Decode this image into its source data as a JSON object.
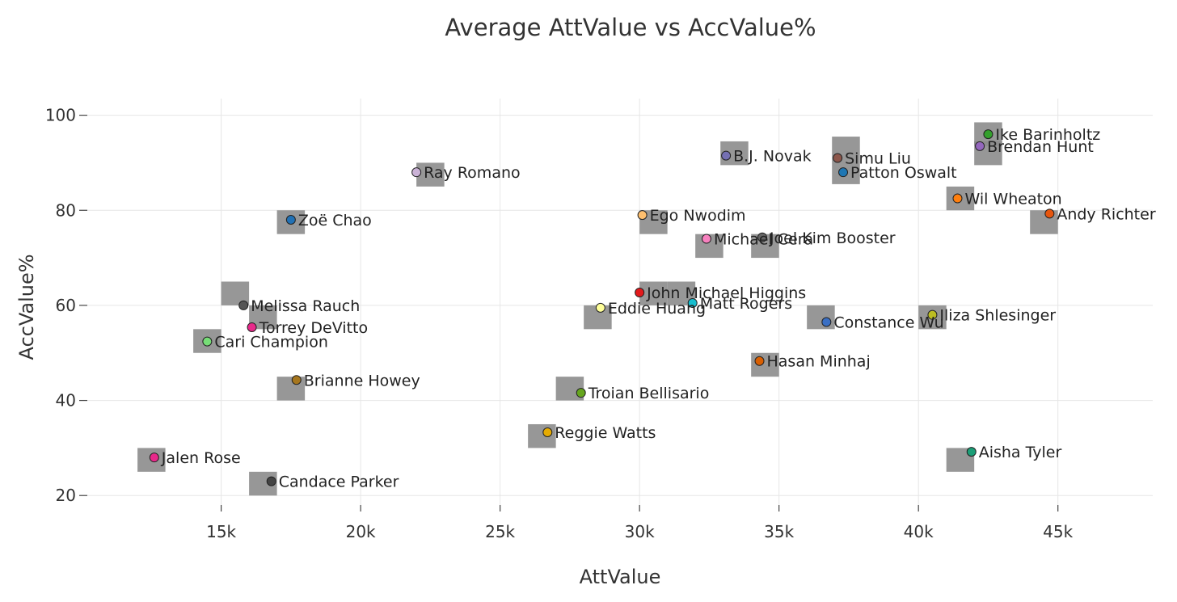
{
  "chart_data": {
    "type": "scatter",
    "title": "Average AttValue vs AccValue%",
    "xlabel": "AttValue",
    "ylabel": "AccValue%",
    "xlim": [
      10200,
      48400
    ],
    "ylim": [
      18,
      103.5
    ],
    "x_ticks": [
      15000,
      20000,
      25000,
      30000,
      35000,
      40000,
      45000
    ],
    "x_tick_labels": [
      "15k",
      "20k",
      "25k",
      "30k",
      "35k",
      "40k",
      "45k"
    ],
    "y_ticks": [
      20,
      40,
      60,
      80,
      100
    ],
    "y_tick_labels": [
      "20",
      "40",
      "60",
      "80",
      "100"
    ],
    "grid": true,
    "legend": "none",
    "points": [
      {
        "label": "Ike Barinholtz",
        "x": 42500,
        "y": 96,
        "color": "#33a02c"
      },
      {
        "label": "Brendan Hunt",
        "x": 42200,
        "y": 93.5,
        "color": "#9467bd"
      },
      {
        "label": "B.J. Novak",
        "x": 33100,
        "y": 91.5,
        "color": "#7570b3"
      },
      {
        "label": "Simu Liu",
        "x": 37100,
        "y": 91,
        "color": "#8c564b"
      },
      {
        "label": "Patton Oswalt",
        "x": 37300,
        "y": 88,
        "color": "#1f77b4"
      },
      {
        "label": "Ray Romano",
        "x": 22000,
        "y": 88,
        "color": "#cab2d6"
      },
      {
        "label": "Wil Wheaton",
        "x": 41400,
        "y": 82.5,
        "color": "#ff7f0e"
      },
      {
        "label": "Andy Richter",
        "x": 44700,
        "y": 79.3,
        "color": "#e6550d"
      },
      {
        "label": "Ego Nwodim",
        "x": 30100,
        "y": 79,
        "color": "#fdbf6f"
      },
      {
        "label": "Zoë Chao",
        "x": 17500,
        "y": 78,
        "color": "#2171b5"
      },
      {
        "label": "Michael Cera",
        "x": 32400,
        "y": 74,
        "color": "#f781bf"
      },
      {
        "label": "Joel Kim Booster",
        "x": 34400,
        "y": 74.3,
        "color": "#666666"
      },
      {
        "label": "John Michael Higgins",
        "x": 30000,
        "y": 62.7,
        "color": "#e31a1c"
      },
      {
        "label": "Matt Rogers",
        "x": 31900,
        "y": 60.5,
        "color": "#17becf"
      },
      {
        "label": "Melissa Rauch",
        "x": 15800,
        "y": 60,
        "color": "#555555"
      },
      {
        "label": "Eddie Huang",
        "x": 28600,
        "y": 59.5,
        "color": "#ffff99"
      },
      {
        "label": "Iliza Shlesinger",
        "x": 40500,
        "y": 58,
        "color": "#bcbd22"
      },
      {
        "label": "Constance Wu",
        "x": 36700,
        "y": 56.5,
        "color": "#3a6fc4"
      },
      {
        "label": "Torrey DeVitto",
        "x": 16100,
        "y": 55.4,
        "color": "#e7298a"
      },
      {
        "label": "Cari Champion",
        "x": 14500,
        "y": 52.4,
        "color": "#77dd77"
      },
      {
        "label": "Hasan Minhaj",
        "x": 34300,
        "y": 48.3,
        "color": "#d95f02"
      },
      {
        "label": "Brianne Howey",
        "x": 17700,
        "y": 44.3,
        "color": "#a6761d"
      },
      {
        "label": "Troian Bellisario",
        "x": 27900,
        "y": 41.6,
        "color": "#66a61e"
      },
      {
        "label": "Reggie Watts",
        "x": 26700,
        "y": 33.3,
        "color": "#e6ab02"
      },
      {
        "label": "Aisha Tyler",
        "x": 41900,
        "y": 29.2,
        "color": "#1b9e77"
      },
      {
        "label": "Jalen Rose",
        "x": 12600,
        "y": 28,
        "color": "#e7298a"
      },
      {
        "label": "Candace Parker",
        "x": 16800,
        "y": 23,
        "color": "#444444"
      }
    ],
    "background_markers": [
      {
        "x": 42500,
        "y": 96
      },
      {
        "x": 42500,
        "y": 92
      },
      {
        "x": 33400,
        "y": 92
      },
      {
        "x": 37400,
        "y": 93
      },
      {
        "x": 37400,
        "y": 88
      },
      {
        "x": 22500,
        "y": 87.5
      },
      {
        "x": 41500,
        "y": 82.5
      },
      {
        "x": 44500,
        "y": 77.5
      },
      {
        "x": 30500,
        "y": 77.5
      },
      {
        "x": 17500,
        "y": 77.5
      },
      {
        "x": 32500,
        "y": 72.5
      },
      {
        "x": 34500,
        "y": 72.5
      },
      {
        "x": 30500,
        "y": 62.5
      },
      {
        "x": 31500,
        "y": 62.5
      },
      {
        "x": 15500,
        "y": 62.5
      },
      {
        "x": 16500,
        "y": 57.5
      },
      {
        "x": 28500,
        "y": 57.5
      },
      {
        "x": 40500,
        "y": 57.5
      },
      {
        "x": 36500,
        "y": 57.5
      },
      {
        "x": 14500,
        "y": 52.5
      },
      {
        "x": 34500,
        "y": 47.5
      },
      {
        "x": 17500,
        "y": 42.5
      },
      {
        "x": 27500,
        "y": 42.5
      },
      {
        "x": 26500,
        "y": 32.5
      },
      {
        "x": 41500,
        "y": 27.5
      },
      {
        "x": 12500,
        "y": 27.5
      },
      {
        "x": 16500,
        "y": 22.5
      }
    ]
  }
}
